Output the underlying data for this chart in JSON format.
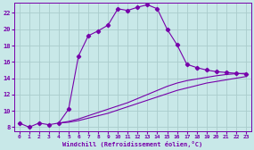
{
  "xlabel": "Windchill (Refroidissement éolien,°C)",
  "bg_color": "#c8e8e8",
  "grid_color": "#aacccc",
  "line_color": "#7700aa",
  "spine_color": "#7700aa",
  "xlim": [
    -0.5,
    23.5
  ],
  "ylim": [
    7.5,
    23.2
  ],
  "yticks": [
    8,
    10,
    12,
    14,
    16,
    18,
    20,
    22
  ],
  "xticks": [
    0,
    1,
    2,
    3,
    4,
    5,
    6,
    7,
    8,
    9,
    10,
    11,
    12,
    13,
    14,
    15,
    16,
    17,
    18,
    19,
    20,
    21,
    22,
    23
  ],
  "curve1_x": [
    0,
    1,
    2,
    3,
    4,
    5,
    6,
    7,
    8,
    9,
    10,
    11,
    12,
    13,
    14,
    15,
    16,
    17,
    18,
    19,
    20,
    21,
    22,
    23
  ],
  "curve1_y": [
    8.5,
    8.0,
    8.5,
    8.3,
    8.5,
    10.2,
    16.7,
    19.2,
    19.8,
    20.5,
    22.5,
    22.3,
    22.7,
    23.0,
    22.5,
    20.0,
    18.1,
    15.7,
    15.3,
    15.0,
    14.8,
    14.7,
    14.6,
    14.5
  ],
  "curve2_x": [
    4,
    5,
    6,
    7,
    8,
    9,
    10,
    11,
    12,
    13,
    14,
    15,
    16,
    17,
    18,
    19,
    20,
    21,
    22,
    23
  ],
  "curve2_y": [
    8.5,
    8.7,
    9.0,
    9.4,
    9.8,
    10.2,
    10.6,
    11.0,
    11.5,
    12.0,
    12.5,
    13.0,
    13.4,
    13.7,
    13.9,
    14.1,
    14.3,
    14.45,
    14.55,
    14.6
  ],
  "curve3_x": [
    4,
    5,
    6,
    7,
    8,
    9,
    10,
    11,
    12,
    13,
    14,
    15,
    16,
    17,
    18,
    19,
    20,
    21,
    22,
    23
  ],
  "curve3_y": [
    8.5,
    8.6,
    8.8,
    9.1,
    9.4,
    9.7,
    10.1,
    10.5,
    10.9,
    11.3,
    11.7,
    12.1,
    12.5,
    12.8,
    13.1,
    13.4,
    13.6,
    13.8,
    14.0,
    14.2
  ]
}
